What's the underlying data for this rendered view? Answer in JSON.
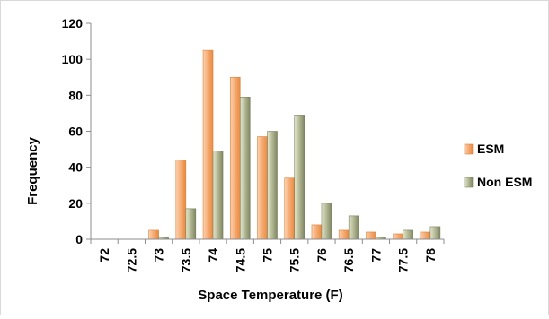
{
  "chart_data": {
    "type": "bar",
    "title": "",
    "xlabel": "Space Temperature (F)",
    "ylabel": "Frequency",
    "ylim": [
      0,
      120
    ],
    "yticks": [
      "0",
      "20",
      "40",
      "60",
      "80",
      "100",
      "120"
    ],
    "categories": [
      "72",
      "72.5",
      "73",
      "73.5",
      "74",
      "74.5",
      "75",
      "75.5",
      "76",
      "76.5",
      "77",
      "77.5",
      "78"
    ],
    "series": [
      {
        "name": "ESM",
        "values": [
          0,
          0,
          5,
          44,
          105,
          90,
          57,
          34,
          8,
          5,
          4,
          3,
          4
        ],
        "color": "#f4a460"
      },
      {
        "name": "Non ESM",
        "values": [
          0,
          0,
          1,
          17,
          49,
          79,
          60,
          69,
          20,
          13,
          1,
          5,
          7
        ],
        "color": "#9aa07a"
      }
    ],
    "grid": false,
    "legend": "right"
  }
}
